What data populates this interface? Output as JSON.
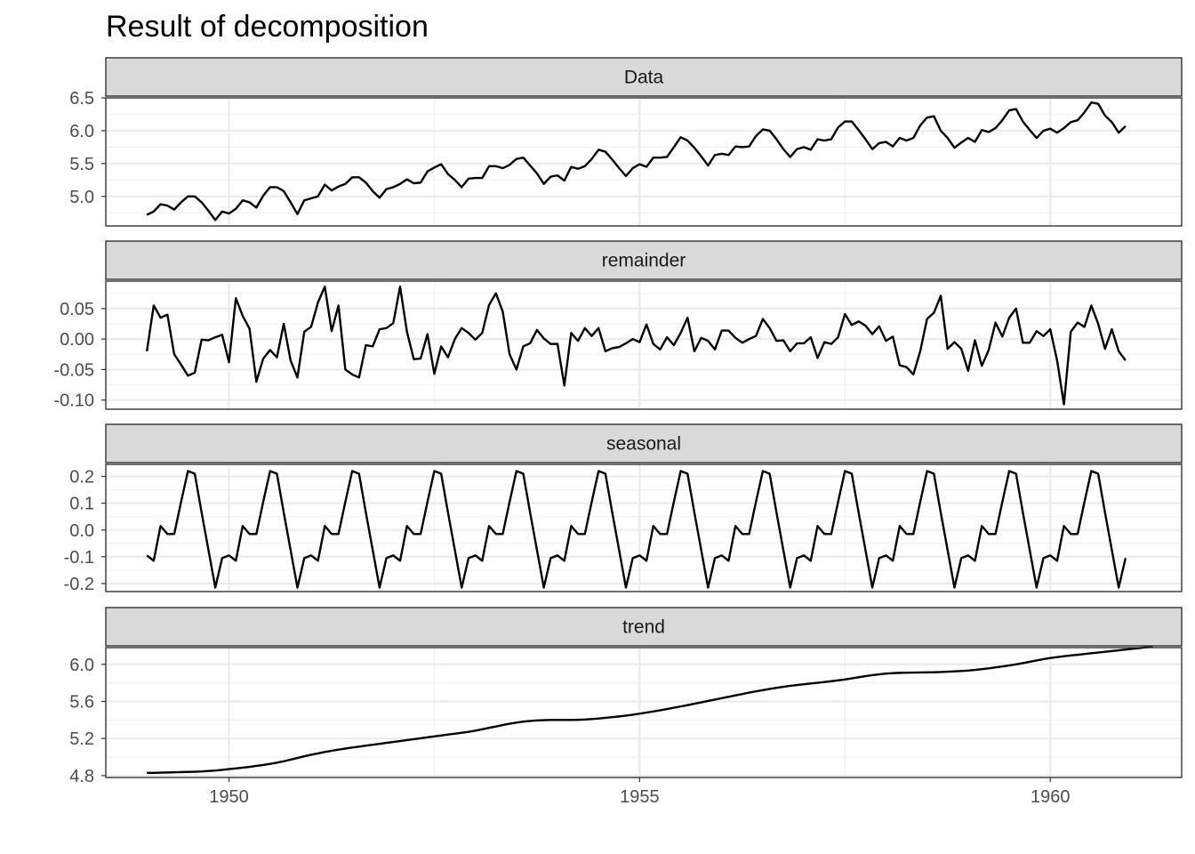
{
  "chart_data": {
    "type": "line",
    "title": "Result of decomposition",
    "x_axis": {
      "range": [
        1948.5,
        1961.6
      ],
      "ticks": [
        1950,
        1955,
        1960
      ],
      "tick_labels": [
        "1950",
        "1955",
        "1960"
      ]
    },
    "grid": true,
    "legend": "none",
    "x_start": 1949.0,
    "x_step": 0.083333,
    "panels": [
      {
        "name": "Data",
        "y_range": [
          4.55,
          6.5
        ],
        "y_ticks": [
          5.0,
          5.5,
          6.0,
          6.5
        ],
        "y_tick_labels": [
          "5.0",
          "5.5",
          "6.0",
          "6.5"
        ],
        "values": [
          4.72,
          4.77,
          4.88,
          4.86,
          4.8,
          4.91,
          5.0,
          5.0,
          4.91,
          4.78,
          4.64,
          4.77,
          4.74,
          4.81,
          4.94,
          4.91,
          4.83,
          5.01,
          5.14,
          5.14,
          5.08,
          4.91,
          4.73,
          4.94,
          4.97,
          5.0,
          5.18,
          5.09,
          5.15,
          5.19,
          5.29,
          5.29,
          5.21,
          5.08,
          4.98,
          5.11,
          5.14,
          5.19,
          5.26,
          5.2,
          5.21,
          5.38,
          5.44,
          5.49,
          5.34,
          5.25,
          5.14,
          5.27,
          5.28,
          5.28,
          5.46,
          5.46,
          5.43,
          5.48,
          5.57,
          5.59,
          5.47,
          5.35,
          5.19,
          5.3,
          5.32,
          5.24,
          5.45,
          5.42,
          5.46,
          5.57,
          5.71,
          5.68,
          5.56,
          5.43,
          5.31,
          5.43,
          5.49,
          5.45,
          5.59,
          5.59,
          5.6,
          5.75,
          5.9,
          5.85,
          5.74,
          5.61,
          5.47,
          5.63,
          5.65,
          5.63,
          5.76,
          5.75,
          5.76,
          5.92,
          6.02,
          6.0,
          5.87,
          5.72,
          5.6,
          5.72,
          5.75,
          5.71,
          5.87,
          5.85,
          5.87,
          6.05,
          6.14,
          6.14,
          6.01,
          5.87,
          5.72,
          5.81,
          5.83,
          5.76,
          5.89,
          5.85,
          5.89,
          6.08,
          6.2,
          6.22,
          6.0,
          5.89,
          5.74,
          5.82,
          5.89,
          5.83,
          6.01,
          5.98,
          6.04,
          6.16,
          6.31,
          6.33,
          6.14,
          6.01,
          5.89,
          6.0,
          6.03,
          5.97,
          6.04,
          6.13,
          6.16,
          6.28,
          6.43,
          6.41,
          6.23,
          6.13,
          5.97,
          6.07
        ]
      },
      {
        "name": "remainder",
        "y_range": [
          -0.115,
          0.095
        ],
        "y_ticks": [
          -0.1,
          -0.05,
          0.0,
          0.05
        ],
        "y_tick_labels": [
          "-0.10",
          "-0.05",
          "0.00",
          "0.05"
        ],
        "values": [
          -0.02,
          0.055,
          0.035,
          0.04,
          -0.025,
          -0.042,
          -0.06,
          -0.055,
          -0.001,
          -0.002,
          0.003,
          0.007,
          -0.038,
          0.067,
          0.038,
          0.017,
          -0.07,
          -0.032,
          -0.018,
          -0.03,
          0.025,
          -0.035,
          -0.063,
          0.012,
          0.02,
          0.06,
          0.086,
          0.013,
          0.055,
          -0.05,
          -0.058,
          -0.063,
          -0.01,
          -0.012,
          0.016,
          0.018,
          0.026,
          0.086,
          0.012,
          -0.033,
          -0.032,
          0.008,
          -0.057,
          -0.012,
          -0.03,
          0.0,
          0.018,
          0.01,
          -0.001,
          0.01,
          0.056,
          0.075,
          0.045,
          -0.025,
          -0.05,
          -0.012,
          -0.007,
          0.015,
          0.001,
          -0.008,
          -0.008,
          -0.076,
          0.01,
          -0.003,
          0.018,
          0.005,
          0.018,
          -0.02,
          -0.015,
          -0.013,
          -0.007,
          0.0,
          -0.005,
          0.024,
          -0.008,
          -0.017,
          0.003,
          -0.01,
          0.01,
          0.035,
          -0.02,
          0.002,
          -0.003,
          -0.017,
          0.014,
          0.014,
          0.002,
          -0.006,
          0.0,
          0.005,
          0.033,
          0.018,
          -0.003,
          -0.002,
          -0.02,
          -0.007,
          -0.007,
          0.003,
          -0.031,
          -0.005,
          -0.008,
          0.003,
          0.041,
          0.023,
          0.029,
          0.022,
          0.008,
          0.021,
          -0.003,
          0.004,
          -0.043,
          -0.046,
          -0.058,
          -0.02,
          0.033,
          0.043,
          0.071,
          -0.016,
          -0.005,
          -0.016,
          -0.052,
          -0.002,
          -0.044,
          -0.018,
          0.027,
          0.004,
          0.035,
          0.05,
          -0.006,
          -0.006,
          0.013,
          0.005,
          0.016,
          -0.035,
          -0.107,
          0.012,
          0.027,
          0.02,
          0.055,
          0.025,
          -0.016,
          0.016,
          -0.02,
          -0.035
        ]
      },
      {
        "name": "seasonal",
        "y_range": [
          -0.23,
          0.245
        ],
        "y_ticks": [
          -0.2,
          -0.1,
          0.0,
          0.1,
          0.2
        ],
        "y_tick_labels": [
          "-0.2",
          "-0.1",
          "0.0",
          "0.1",
          "0.2"
        ],
        "values": [
          -0.095,
          -0.115,
          0.015,
          -0.015,
          -0.015,
          0.105,
          0.22,
          0.21,
          0.065,
          -0.075,
          -0.215,
          -0.105,
          -0.095,
          -0.115,
          0.015,
          -0.015,
          -0.015,
          0.105,
          0.22,
          0.21,
          0.065,
          -0.075,
          -0.215,
          -0.105,
          -0.095,
          -0.115,
          0.015,
          -0.015,
          -0.015,
          0.105,
          0.22,
          0.21,
          0.065,
          -0.075,
          -0.215,
          -0.105,
          -0.095,
          -0.115,
          0.015,
          -0.015,
          -0.015,
          0.105,
          0.22,
          0.21,
          0.065,
          -0.075,
          -0.215,
          -0.105,
          -0.095,
          -0.115,
          0.015,
          -0.015,
          -0.015,
          0.105,
          0.22,
          0.21,
          0.065,
          -0.075,
          -0.215,
          -0.105,
          -0.095,
          -0.115,
          0.015,
          -0.015,
          -0.015,
          0.105,
          0.22,
          0.21,
          0.065,
          -0.075,
          -0.215,
          -0.105,
          -0.095,
          -0.115,
          0.015,
          -0.015,
          -0.015,
          0.105,
          0.22,
          0.21,
          0.065,
          -0.075,
          -0.215,
          -0.105,
          -0.095,
          -0.115,
          0.015,
          -0.015,
          -0.015,
          0.105,
          0.22,
          0.21,
          0.065,
          -0.075,
          -0.215,
          -0.105,
          -0.095,
          -0.115,
          0.015,
          -0.015,
          -0.015,
          0.105,
          0.22,
          0.21,
          0.065,
          -0.075,
          -0.215,
          -0.105,
          -0.095,
          -0.115,
          0.015,
          -0.015,
          -0.015,
          0.105,
          0.22,
          0.21,
          0.065,
          -0.075,
          -0.215,
          -0.105,
          -0.095,
          -0.115,
          0.015,
          -0.015,
          -0.015,
          0.105,
          0.22,
          0.21,
          0.065,
          -0.075,
          -0.215,
          -0.105,
          -0.095,
          -0.115,
          0.015,
          -0.015,
          -0.015,
          0.105,
          0.22,
          0.21,
          0.065,
          -0.075,
          -0.215,
          -0.105
        ]
      },
      {
        "name": "trend",
        "y_range": [
          4.78,
          6.18
        ],
        "y_ticks": [
          4.8,
          5.2,
          5.6,
          6.0
        ],
        "y_tick_labels": [
          "4.8",
          "5.2",
          "5.6",
          "6.0"
        ],
        "values": [
          4.83,
          4.83,
          4.832,
          4.834,
          4.836,
          4.838,
          4.84,
          4.842,
          4.845,
          4.85,
          4.855,
          4.862,
          4.87,
          4.878,
          4.886,
          4.895,
          4.905,
          4.915,
          4.927,
          4.94,
          4.955,
          4.972,
          4.99,
          5.008,
          5.025,
          5.04,
          5.055,
          5.068,
          5.08,
          5.092,
          5.103,
          5.113,
          5.123,
          5.133,
          5.143,
          5.153,
          5.163,
          5.173,
          5.183,
          5.193,
          5.203,
          5.213,
          5.223,
          5.233,
          5.243,
          5.252,
          5.262,
          5.272,
          5.285,
          5.3,
          5.315,
          5.33,
          5.345,
          5.36,
          5.372,
          5.382,
          5.39,
          5.395,
          5.398,
          5.4,
          5.4,
          5.4,
          5.4,
          5.402,
          5.405,
          5.41,
          5.416,
          5.423,
          5.43,
          5.438,
          5.447,
          5.457,
          5.468,
          5.48,
          5.492,
          5.505,
          5.518,
          5.532,
          5.546,
          5.56,
          5.575,
          5.59,
          5.605,
          5.62,
          5.635,
          5.65,
          5.665,
          5.68,
          5.695,
          5.709,
          5.722,
          5.735,
          5.747,
          5.758,
          5.768,
          5.777,
          5.785,
          5.793,
          5.801,
          5.809,
          5.818,
          5.827,
          5.837,
          5.848,
          5.86,
          5.872,
          5.883,
          5.892,
          5.9,
          5.905,
          5.908,
          5.91,
          5.911,
          5.912,
          5.913,
          5.915,
          5.917,
          5.92,
          5.924,
          5.928,
          5.933,
          5.94,
          5.948,
          5.957,
          5.967,
          5.977,
          5.988,
          6.0,
          6.013,
          6.027,
          6.042,
          6.056,
          6.068,
          6.078,
          6.087,
          6.095,
          6.103,
          6.111,
          6.119,
          6.127,
          6.135,
          6.143,
          6.151,
          6.159,
          6.167,
          6.175,
          6.183,
          6.19
        ]
      }
    ]
  }
}
